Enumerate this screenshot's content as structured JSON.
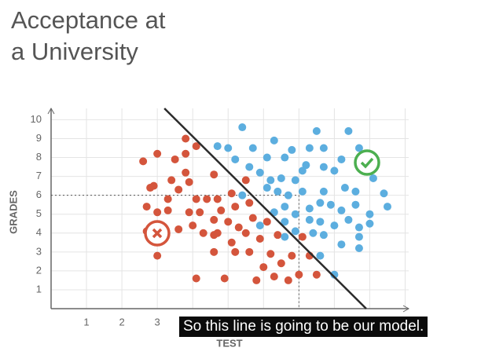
{
  "chart_data": {
    "type": "scatter",
    "title": "Acceptance at a University",
    "x_label": "TEST",
    "y_label": "GRADES",
    "caption": "So this line is going to be our model.",
    "xlim": [
      0,
      10.1
    ],
    "ylim": [
      0,
      10.6
    ],
    "xticks": [
      1,
      2,
      3
    ],
    "yticks": [
      1,
      2,
      3,
      4,
      5,
      6,
      7,
      8,
      9,
      10
    ],
    "grid": true,
    "model_line": {
      "color": "#2b2b2b",
      "x": [
        3.2,
        8.9
      ],
      "y": [
        10.6,
        0
      ]
    },
    "reference_point": {
      "x": 7,
      "y": 6
    },
    "series": [
      {
        "name": "Rejected",
        "color": "#d4553c",
        "x": [
          2.6,
          3,
          2.8,
          2.9,
          2.7,
          3,
          2.7,
          3,
          3.3,
          3.3,
          3.5,
          3.4,
          3.6,
          3.8,
          3.8,
          3.8,
          3.9,
          3.6,
          3.9,
          4.0,
          4.1,
          4.1,
          4.4,
          4.2,
          4.1,
          4.6,
          4.6,
          4.7,
          4.8,
          5,
          4.7,
          4.6,
          4.9,
          5.1,
          5.2,
          5.2,
          5.5,
          5.6,
          5.5,
          5.6,
          5.7,
          5.8,
          5.9,
          6,
          6.1,
          6.2,
          6.4,
          6.3,
          6.5,
          6.7,
          6.8,
          7.1,
          7,
          7.3,
          7.5,
          5.1,
          4.6,
          4.3,
          5.3
        ],
        "values": [
          7.8,
          8.2,
          6.4,
          6.5,
          5.4,
          5.1,
          4.1,
          2.8,
          5.8,
          5.2,
          7.9,
          6.8,
          6.3,
          9,
          8.2,
          7.2,
          6.7,
          4.2,
          5.1,
          4.4,
          5.8,
          8.6,
          5.8,
          5.1,
          1.6,
          7.1,
          4.7,
          5.8,
          5.2,
          4.6,
          4,
          3,
          1.6,
          6.1,
          5.4,
          3,
          6.8,
          5.6,
          4,
          3,
          4.8,
          1.5,
          3.7,
          2.2,
          4.6,
          2.9,
          3.9,
          1.7,
          2.4,
          1.5,
          2.8,
          3.8,
          1.8,
          2.8,
          1.8,
          3.5,
          3.9,
          4.0,
          4.3
        ]
      },
      {
        "name": "Accepted",
        "color": "#5caedf",
        "x": [
          5.4,
          4.7,
          5.0,
          5.2,
          5.7,
          6.3,
          5.6,
          6.1,
          6.6,
          6.8,
          7.3,
          7.5,
          7.7,
          8.4,
          8.7,
          8,
          8.2,
          7.7,
          7.2,
          5.9,
          6.2,
          6.5,
          6.9,
          7.1,
          5.4,
          6.1,
          6.4,
          6.7,
          7.1,
          7.7,
          8.3,
          8.6,
          9.1,
          9.4,
          9.5,
          6.6,
          6.3,
          6.9,
          7.3,
          7.6,
          7.9,
          8.2,
          8.6,
          9,
          9,
          5.9,
          6.6,
          7.3,
          7.6,
          8,
          8.4,
          8.7,
          6.9,
          7.4,
          7.7,
          8.2,
          8.7,
          8.7,
          7.6,
          8,
          6.6
        ],
        "values": [
          9.6,
          8.6,
          8.5,
          7.9,
          8.5,
          8.9,
          7.5,
          8,
          8.0,
          8.4,
          8.5,
          9.4,
          8.5,
          9.4,
          8.5,
          7.3,
          7.9,
          7.5,
          7.6,
          7.2,
          6.8,
          6.9,
          6.8,
          7.3,
          6,
          6.4,
          6.2,
          6,
          6.2,
          6.2,
          6.4,
          6.2,
          6.9,
          6.1,
          5.4,
          5.4,
          5.1,
          5.0,
          5.3,
          5.6,
          5.5,
          5.2,
          5.5,
          5,
          4.5,
          4.4,
          4.6,
          4.7,
          4.6,
          4.4,
          4.7,
          4.3,
          4.1,
          4,
          3.9,
          3.4,
          3.8,
          3.2,
          2.8,
          1.8,
          3.8
        ]
      }
    ]
  }
}
